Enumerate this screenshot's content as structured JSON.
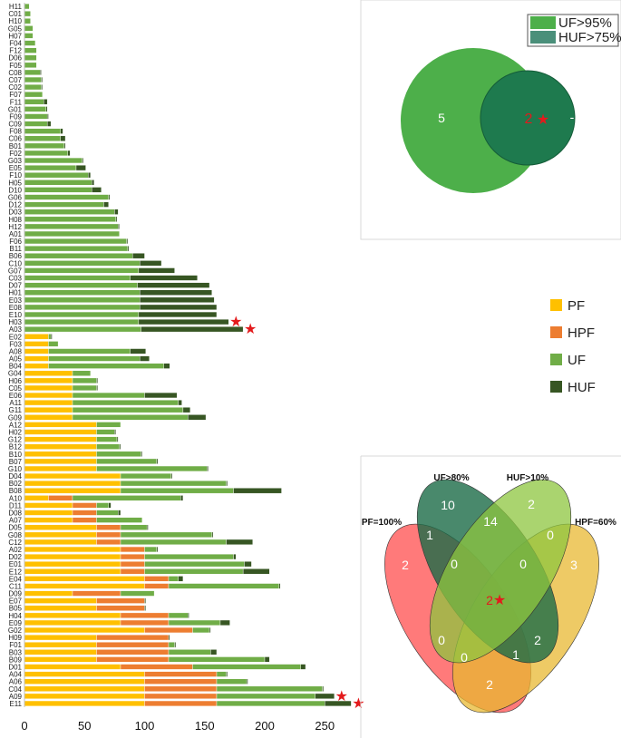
{
  "chart_data": [
    {
      "type": "bar",
      "orientation": "horizontal",
      "stacked": true,
      "categories": [
        "H11",
        "C01",
        "H10",
        "G05",
        "H07",
        "F04",
        "F12",
        "D06",
        "F05",
        "C08",
        "C07",
        "C02",
        "F07",
        "F11",
        "G01",
        "F09",
        "C09",
        "F08",
        "C06",
        "B01",
        "F02",
        "G03",
        "E05",
        "F10",
        "H05",
        "D10",
        "G06",
        "D12",
        "D03",
        "H08",
        "H12",
        "A01",
        "F06",
        "B11",
        "B06",
        "C10",
        "G07",
        "C03",
        "D07",
        "H01",
        "E03",
        "E08",
        "E10",
        "H03",
        "A03",
        "E02",
        "F03",
        "A08",
        "A05",
        "B04",
        "G04",
        "H06",
        "C05",
        "E06",
        "A11",
        "G11",
        "G09",
        "A12",
        "H02",
        "G12",
        "B12",
        "B10",
        "B07",
        "G10",
        "D04",
        "B02",
        "B08",
        "A10",
        "D11",
        "D08",
        "A07",
        "D05",
        "G08",
        "C12",
        "A02",
        "D02",
        "E01",
        "E12",
        "E04",
        "C11",
        "D09",
        "E07",
        "B05",
        "H04",
        "E09",
        "G02",
        "H09",
        "F01",
        "B03",
        "B09",
        "D01",
        "A04",
        "A06",
        "C04",
        "A09",
        "E11"
      ],
      "series": [
        {
          "name": "PF",
          "color": "#ffc000",
          "values": [
            0,
            0,
            0,
            0,
            0,
            0,
            0,
            0,
            0,
            0,
            0,
            0,
            0,
            0,
            0,
            0,
            0,
            0,
            0,
            0,
            0,
            0,
            0,
            0,
            0,
            0,
            0,
            0,
            0,
            0,
            0,
            0,
            0,
            0,
            0,
            0,
            0,
            0,
            0,
            0,
            0,
            0,
            0,
            0,
            0,
            20,
            20,
            20,
            20,
            20,
            40,
            40,
            40,
            40,
            40,
            40,
            40,
            60,
            60,
            60,
            60,
            60,
            60,
            60,
            80,
            80,
            80,
            20,
            40,
            40,
            40,
            60,
            60,
            60,
            80,
            80,
            80,
            80,
            100,
            100,
            40,
            60,
            60,
            80,
            80,
            100,
            60,
            60,
            60,
            60,
            80,
            100,
            100,
            100,
            100,
            100
          ]
        },
        {
          "name": "HPF",
          "color": "#ed7d31",
          "values": [
            0,
            0,
            0,
            0,
            0,
            0,
            0,
            0,
            0,
            0,
            0,
            0,
            0,
            0,
            0,
            0,
            0,
            0,
            0,
            0,
            0,
            0,
            0,
            0,
            0,
            0,
            0,
            0,
            0,
            0,
            0,
            0,
            0,
            0,
            0,
            0,
            0,
            0,
            0,
            0,
            0,
            0,
            0,
            0,
            0,
            0,
            0,
            0,
            0,
            0,
            0,
            0,
            0,
            0,
            0,
            0,
            0,
            0,
            0,
            0,
            0,
            0,
            0,
            0,
            0,
            0,
            0,
            20,
            20,
            20,
            20,
            20,
            20,
            20,
            20,
            20,
            20,
            20,
            20,
            20,
            40,
            40,
            40,
            40,
            40,
            40,
            60,
            60,
            60,
            60,
            60,
            60,
            60,
            60,
            60,
            60
          ]
        },
        {
          "name": "UF",
          "color": "#70ad47",
          "values": [
            4,
            5,
            5,
            7,
            7,
            9,
            10,
            10,
            10,
            13,
            14,
            14,
            15,
            16,
            18,
            19,
            19,
            30,
            30,
            33,
            36,
            48,
            43,
            53,
            56,
            56,
            70,
            66,
            75,
            76,
            78,
            79,
            85,
            86,
            90,
            96,
            95,
            88,
            94,
            96,
            96,
            96,
            95,
            95,
            97,
            2,
            8,
            68,
            76,
            96,
            15,
            20,
            20,
            60,
            88,
            92,
            96,
            20,
            15,
            17,
            19,
            37,
            50,
            92,
            42,
            88,
            94,
            90,
            10,
            18,
            38,
            22,
            76,
            88,
            10,
            74,
            83,
            82,
            8,
            92,
            28,
            0,
            0,
            16,
            43,
            14,
            0,
            5,
            35,
            80,
            90,
            8,
            25,
            88,
            82,
            90
          ]
        },
        {
          "name": "HUF",
          "color": "#375623",
          "values": [
            0,
            0,
            0,
            0,
            0,
            0,
            0,
            0,
            0,
            1,
            1,
            1,
            0,
            3,
            1,
            1,
            3,
            2,
            4,
            1,
            2,
            1,
            8,
            2,
            2,
            8,
            1,
            4,
            3,
            1,
            1,
            0,
            1,
            1,
            10,
            18,
            30,
            56,
            60,
            60,
            62,
            64,
            65,
            75,
            85,
            1,
            0,
            13,
            8,
            5,
            0,
            1,
            1,
            27,
            3,
            6,
            15,
            0,
            1,
            1,
            1,
            1,
            1,
            1,
            1,
            1,
            40,
            2,
            2,
            2,
            0,
            1,
            1,
            22,
            1,
            2,
            6,
            22,
            4,
            1,
            0,
            1,
            1,
            1,
            8,
            1,
            1,
            1,
            5,
            4,
            4,
            1,
            1,
            1,
            16,
            22
          ]
        }
      ],
      "markers": [
        {
          "category": "H03",
          "symbol": "★"
        },
        {
          "category": "A03",
          "symbol": "★"
        },
        {
          "category": "A09",
          "symbol": "★"
        },
        {
          "category": "E11",
          "symbol": "★"
        }
      ],
      "x": {
        "ticks": [
          "0",
          "50",
          "100",
          "150",
          "200",
          "250"
        ],
        "range": [
          0,
          280
        ]
      },
      "legend": {
        "placement": "right",
        "entries": [
          {
            "label": "PF",
            "color": "#ffc000"
          },
          {
            "label": "HPF",
            "color": "#ed7d31"
          },
          {
            "label": "UF",
            "color": "#70ad47"
          },
          {
            "label": "HUF",
            "color": "#375623"
          }
        ]
      }
    },
    {
      "type": "venn",
      "sets": [
        {
          "label": "UF>95%",
          "color": "#4daf4a"
        },
        {
          "label": "HUF>75%",
          "color": "#1e7a4e"
        }
      ],
      "regions": [
        {
          "sets": [
            "UF>95%"
          ],
          "value": "5"
        },
        {
          "sets": [
            "UF>95%",
            "HUF>75%"
          ],
          "value": "2",
          "marker": "★"
        },
        {
          "sets": [
            "HUF>75%"
          ],
          "value": "-"
        }
      ],
      "legend": {
        "placement": "top-right"
      }
    },
    {
      "type": "venn",
      "sets": [
        {
          "label": "PF=100%",
          "color": "#ff4d4d"
        },
        {
          "label": "UF>80%",
          "color": "#1b6b47"
        },
        {
          "label": "HUF>10%",
          "color": "#8dc63f"
        },
        {
          "label": "HPF=60%",
          "color": "#e8b832"
        }
      ],
      "regions": [
        {
          "id": "uf_only",
          "value": "10"
        },
        {
          "id": "huf_only",
          "value": "2"
        },
        {
          "id": "uf_huf",
          "value": "14"
        },
        {
          "id": "pf_only",
          "value": "2"
        },
        {
          "id": "pf_uf",
          "value": "1"
        },
        {
          "id": "pf_uf_huf",
          "value": "0"
        },
        {
          "id": "uf_huf_hpf",
          "value": "0"
        },
        {
          "id": "huf_hpf",
          "value": "0"
        },
        {
          "id": "hpf_only",
          "value": "3"
        },
        {
          "id": "all_four",
          "value": "2",
          "marker": "★"
        },
        {
          "id": "pf_huf",
          "value": "0"
        },
        {
          "id": "pf_huf_hpf",
          "value": "0"
        },
        {
          "id": "uf_hpf_pf",
          "value": "1"
        },
        {
          "id": "uf_hpf",
          "value": "2"
        },
        {
          "id": "pf_hpf",
          "value": "2"
        }
      ]
    }
  ]
}
